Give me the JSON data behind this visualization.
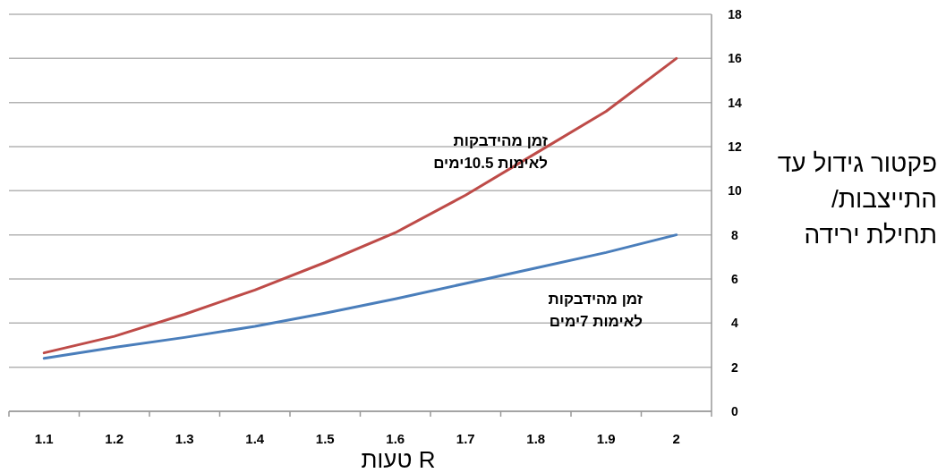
{
  "chart_data": {
    "type": "line",
    "xlabel": "R טעות",
    "ylabel": "פקטור גידול עד התייצבות/ תחילת ירידה",
    "categories": [
      "1.1",
      "1.2",
      "1.3",
      "1.4",
      "1.5",
      "1.6",
      "1.7",
      "1.8",
      "1.9",
      "2"
    ],
    "series": [
      {
        "name": "זמן מהידבקות לאימות 7ימים",
        "color": "#4a7ebb",
        "values": [
          2.4,
          2.9,
          3.35,
          3.85,
          4.45,
          5.1,
          5.8,
          6.5,
          7.2,
          8
        ]
      },
      {
        "name": "זמן מהידבקות לאימות 10.5ימים",
        "color": "#be4b48",
        "values": [
          2.65,
          3.4,
          4.4,
          5.5,
          6.75,
          8.1,
          9.8,
          11.7,
          13.6,
          16
        ]
      }
    ],
    "ylim": [
      0,
      18
    ],
    "yticks": [
      0,
      2,
      4,
      6,
      8,
      10,
      12,
      14,
      16,
      18
    ],
    "grid": "y",
    "marker": "none",
    "line_style": "solid"
  }
}
